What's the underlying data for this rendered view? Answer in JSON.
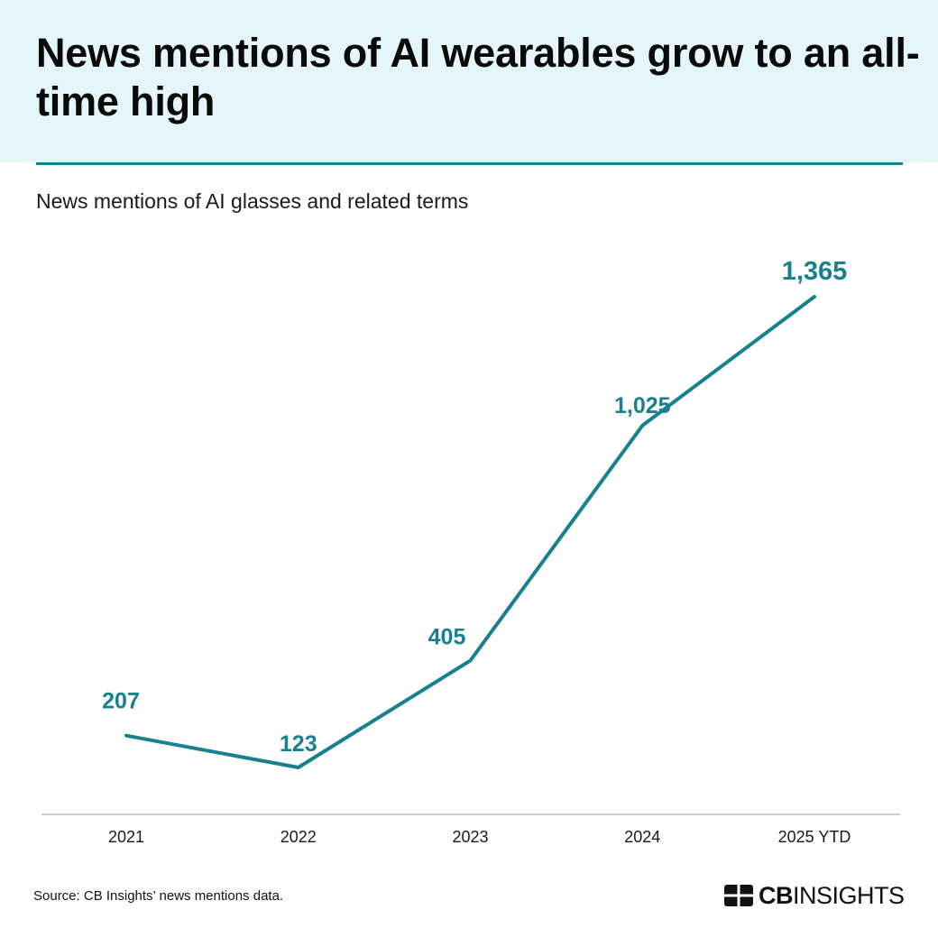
{
  "header": {
    "title": "News mentions of AI wearables grow to an all-time high"
  },
  "chart_data": {
    "type": "line",
    "title": "",
    "subtitle": "News mentions of AI glasses and related terms",
    "categories": [
      "2021",
      "2022",
      "2023",
      "2024",
      "2025 YTD"
    ],
    "series": [
      {
        "values": [
          207,
          123,
          405,
          1025,
          1365
        ],
        "labels": [
          "207",
          "123",
          "405",
          "1,025",
          "1,365"
        ]
      }
    ],
    "xlabel": "",
    "ylabel": "",
    "ylim": [
      50,
      1450
    ],
    "grid": false,
    "legend": "none",
    "line_color": "#18808e",
    "axis_color": "#bdbdbd"
  },
  "footer": {
    "source": "Source: CB Insights’ news mentions data.",
    "logo_bold": "CB",
    "logo_light": "INSIGHTS"
  },
  "colors": {
    "header_bg": "#e4f6fa",
    "accent": "#18808e"
  }
}
